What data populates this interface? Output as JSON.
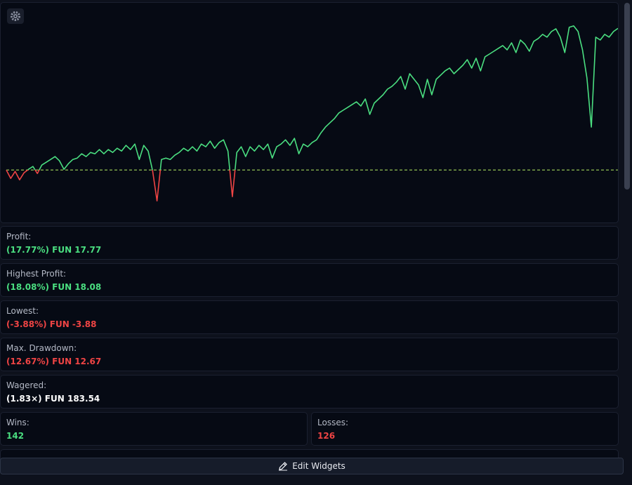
{
  "chart_data": {
    "type": "line",
    "color": "#4ade80",
    "negative_color": "#ef4444",
    "baseline_color": "#a3d65a",
    "ylim": [
      -6.5,
      20.8
    ],
    "values": [
      0,
      -1.06,
      -0.18,
      -1.23,
      -0.35,
      0.09,
      0.44,
      -0.44,
      0.62,
      0.97,
      1.32,
      1.68,
      1.15,
      0.09,
      0.79,
      1.32,
      1.5,
      2.03,
      1.68,
      2.2,
      2.03,
      2.56,
      2.03,
      2.56,
      2.2,
      2.73,
      2.38,
      3.09,
      2.56,
      3.26,
      1.32,
      3.09,
      2.38,
      -0.09,
      -3.88,
      1.32,
      1.5,
      1.32,
      1.85,
      2.2,
      2.73,
      2.38,
      2.91,
      2.38,
      3.26,
      2.91,
      3.62,
      2.73,
      3.44,
      3.79,
      2.38,
      -3.35,
      2.2,
      2.91,
      1.68,
      2.91,
      2.38,
      3.09,
      2.56,
      3.26,
      1.5,
      2.91,
      3.26,
      3.79,
      3.09,
      3.97,
      2.03,
      3.26,
      2.91,
      3.44,
      3.79,
      4.67,
      5.38,
      5.91,
      6.44,
      7.14,
      7.5,
      7.85,
      8.2,
      8.55,
      8.02,
      8.91,
      6.97,
      8.38,
      8.91,
      9.44,
      10.14,
      10.49,
      11.02,
      11.73,
      10.14,
      12.08,
      11.38,
      10.67,
      9.08,
      11.38,
      9.44,
      11.38,
      11.9,
      12.43,
      12.79,
      12.08,
      12.61,
      13.14,
      13.84,
      12.79,
      14.02,
      12.43,
      14.2,
      14.55,
      14.9,
      15.26,
      15.61,
      15.08,
      15.96,
      14.73,
      16.31,
      15.78,
      14.9,
      16.14,
      16.49,
      17.02,
      16.67,
      17.37,
      17.72,
      16.67,
      14.73,
      17.9,
      18.08,
      17.37,
      15.08,
      11.55,
      5.38,
      16.67,
      16.31,
      17.02,
      16.67,
      17.37,
      17.77
    ]
  },
  "stats": [
    {
      "label": "Profit:",
      "value": "(17.77%) FUN 17.77",
      "tone": "positive"
    },
    {
      "label": "Highest Profit:",
      "value": "(18.08%) FUN 18.08",
      "tone": "positive"
    },
    {
      "label": "Lowest:",
      "value": "(-3.88%) FUN -3.88",
      "tone": "negative"
    },
    {
      "label": "Max. Drawdown:",
      "value": "(12.67%) FUN 12.67",
      "tone": "negative"
    },
    {
      "label": "Wagered:",
      "value": "(1.83×) FUN 183.54",
      "tone": "neutral"
    },
    {
      "label": "Wins:",
      "value": "142",
      "tone": "positive"
    },
    {
      "label": "Losses:",
      "value": "126",
      "tone": "negative"
    }
  ],
  "button": "Edit Widgets"
}
